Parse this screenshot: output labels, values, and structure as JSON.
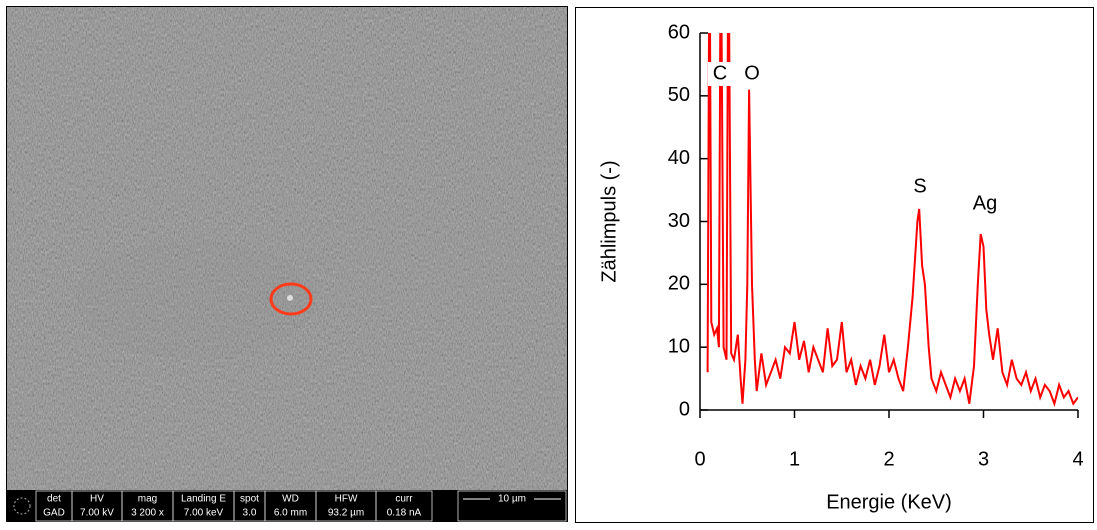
{
  "sem_panel": {
    "info_bar": {
      "columns": [
        {
          "header": "det",
          "value": "GAD"
        },
        {
          "header": "HV",
          "value": "7.00 kV"
        },
        {
          "header": "mag",
          "value": "3 200 x"
        },
        {
          "header": "Landing E",
          "value": "7.00 keV"
        },
        {
          "header": "spot",
          "value": "3.0"
        },
        {
          "header": "WD",
          "value": "6.0 mm"
        },
        {
          "header": "HFW",
          "value": "93.2 µm"
        },
        {
          "header": "curr",
          "value": "0.18 nA"
        }
      ],
      "scale_bar": "10 µm"
    }
  },
  "chart_data": {
    "type": "line",
    "xlabel": "Energie (KeV)",
    "ylabel": "Zählimpuls (-)",
    "color": "#ff0000",
    "annotations": [
      "C",
      "O",
      "S",
      "Ag"
    ],
    "x": [
      0.08,
      0.1,
      0.12,
      0.15,
      0.18,
      0.2,
      0.22,
      0.25,
      0.28,
      0.3,
      0.33,
      0.36,
      0.4,
      0.43,
      0.45,
      0.48,
      0.5,
      0.52,
      0.55,
      0.58,
      0.6,
      0.65,
      0.7,
      0.75,
      0.8,
      0.85,
      0.9,
      0.95,
      1.0,
      1.05,
      1.1,
      1.15,
      1.2,
      1.25,
      1.3,
      1.35,
      1.4,
      1.45,
      1.5,
      1.55,
      1.6,
      1.65,
      1.7,
      1.75,
      1.8,
      1.85,
      1.9,
      1.95,
      2.0,
      2.05,
      2.1,
      2.15,
      2.2,
      2.25,
      2.3,
      2.32,
      2.35,
      2.38,
      2.42,
      2.45,
      2.5,
      2.55,
      2.6,
      2.65,
      2.7,
      2.75,
      2.8,
      2.85,
      2.9,
      2.94,
      2.97,
      3.0,
      3.03,
      3.06,
      3.1,
      3.15,
      3.2,
      3.25,
      3.3,
      3.35,
      3.4,
      3.45,
      3.5,
      3.55,
      3.6,
      3.65,
      3.7,
      3.75,
      3.8,
      3.85,
      3.9,
      3.95,
      4.0
    ],
    "values": [
      6,
      80,
      14,
      12,
      13,
      10,
      80,
      10,
      8,
      80,
      9,
      8,
      12,
      5,
      1,
      8,
      20,
      51,
      20,
      8,
      3,
      9,
      4,
      6,
      8,
      5,
      10,
      9,
      14,
      8,
      11,
      6,
      10,
      8,
      6,
      13,
      7,
      8,
      14,
      6,
      8,
      4,
      7,
      5,
      8,
      4,
      7,
      12,
      6,
      8,
      5,
      3,
      10,
      18,
      30,
      32,
      23,
      20,
      10,
      5,
      3,
      6,
      4,
      2,
      5,
      3,
      5,
      1,
      7,
      20,
      28,
      26,
      16,
      12,
      8,
      13,
      6,
      4,
      8,
      5,
      4,
      6,
      3,
      5,
      2,
      4,
      3,
      1,
      4,
      2,
      3,
      1,
      2
    ],
    "xlim": [
      0,
      4
    ],
    "xticks": [
      0,
      1,
      2,
      3,
      4
    ],
    "ylim": [
      0,
      60
    ],
    "yticks": [
      0,
      10,
      20,
      30,
      40,
      50,
      60
    ]
  }
}
